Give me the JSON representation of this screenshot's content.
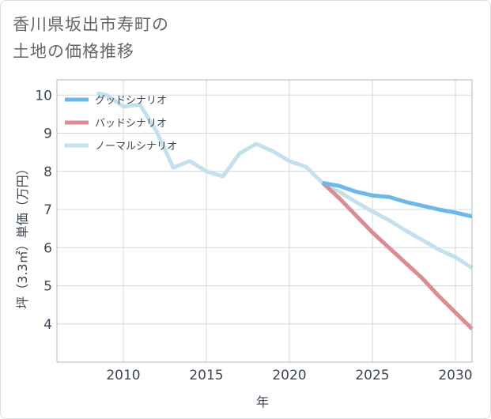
{
  "title_lines": [
    "香川県坂出市寿町の",
    "土地の価格推移"
  ],
  "chart_data": {
    "type": "line",
    "title": "香川県坂出市寿町の土地の価格推移",
    "xlabel": "年",
    "ylabel": "坪（3.3㎡）単価（万円）",
    "xlim": [
      2006,
      2031
    ],
    "ylim": [
      3,
      10.4
    ],
    "x_ticks": [
      2010,
      2015,
      2020,
      2025,
      2030
    ],
    "y_ticks": [
      4,
      5,
      6,
      7,
      8,
      9,
      10
    ],
    "grid": true,
    "legend_position": "top-left",
    "series": [
      {
        "name": "ノーマルシナリオ",
        "color": "#c3e1ed",
        "x": [
          2008.4,
          2009,
          2010,
          2011,
          2012,
          2013,
          2014,
          2015,
          2016,
          2017,
          2018,
          2019,
          2020,
          2021,
          2022,
          2023,
          2024,
          2025,
          2026,
          2027,
          2028,
          2029,
          2030,
          2031
        ],
        "values": [
          10.05,
          10.0,
          9.7,
          9.75,
          9.05,
          8.1,
          8.27,
          8.0,
          7.87,
          8.47,
          8.72,
          8.53,
          8.27,
          8.12,
          7.7,
          7.47,
          7.2,
          6.95,
          6.72,
          6.45,
          6.2,
          5.95,
          5.75,
          5.47
        ]
      },
      {
        "name": "バッドシナリオ",
        "color": "#dd8a92",
        "x": [
          2022,
          2023,
          2024,
          2025,
          2026,
          2027,
          2028,
          2029,
          2030,
          2031
        ],
        "values": [
          7.7,
          7.3,
          6.85,
          6.4,
          6.0,
          5.6,
          5.2,
          4.73,
          4.3,
          3.87
        ]
      },
      {
        "name": "グッドシナリオ",
        "color": "#6cb8e8",
        "x": [
          2022,
          2023,
          2024,
          2025,
          2026,
          2027,
          2028,
          2029,
          2030,
          2031
        ],
        "values": [
          7.7,
          7.62,
          7.47,
          7.37,
          7.33,
          7.2,
          7.1,
          7.0,
          6.92,
          6.82
        ]
      }
    ],
    "legend": [
      "グッドシナリオ",
      "バッドシナリオ",
      "ノーマルシナリオ"
    ]
  }
}
